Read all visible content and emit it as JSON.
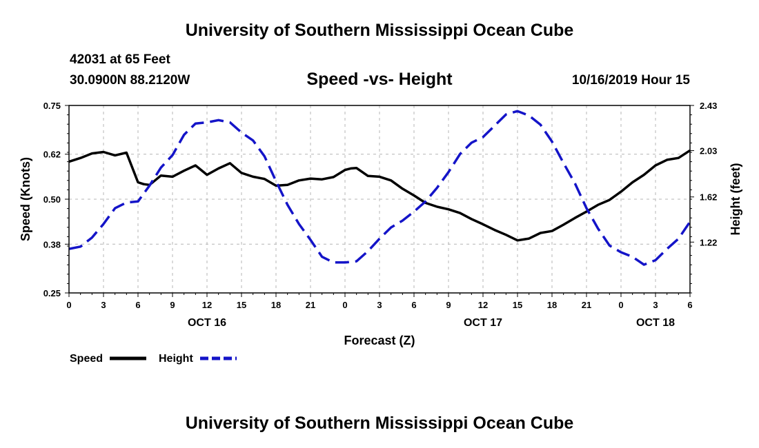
{
  "header": {
    "title": "University of Southern Mississippi Ocean Cube",
    "station": "42031 at 65 Feet",
    "coords": "30.0900N 88.2120W",
    "chart_title": "Speed -vs- Height",
    "timestamp": "10/16/2019 Hour 15"
  },
  "footer": {
    "title": "University of Southern Mississippi Ocean Cube"
  },
  "colors": {
    "speed": "#000000",
    "height": "#1414c8"
  },
  "chart_data": {
    "type": "line",
    "title": "Speed -vs- Height",
    "xlabel": "Forecast (Z)",
    "ylabel": "Speed (Knots)",
    "y2label": "Height (feet)",
    "x_unit": "hours from OCT 16 00Z",
    "xlim": [
      0,
      54
    ],
    "ylim": [
      0.25,
      0.75
    ],
    "y2lim": [
      0.77,
      2.43
    ],
    "x_ticks": [
      0,
      3,
      6,
      9,
      12,
      15,
      18,
      21,
      24,
      27,
      30,
      33,
      36,
      39,
      42,
      45,
      48,
      51,
      54
    ],
    "x_tick_labels": [
      "0",
      "3",
      "6",
      "9",
      "12",
      "15",
      "18",
      "21",
      "0",
      "3",
      "6",
      "9",
      "12",
      "15",
      "18",
      "21",
      "0",
      "3",
      "6"
    ],
    "y_ticks": [
      0.25,
      0.38,
      0.5,
      0.62,
      0.75
    ],
    "y_tick_labels": [
      "0.25",
      "0.38",
      "0.50",
      "0.62",
      "0.75"
    ],
    "y2_ticks": [
      1.22,
      1.62,
      2.03,
      2.43
    ],
    "y2_tick_labels": [
      "1.22",
      "1.62",
      "2.03",
      "2.43"
    ],
    "date_labels": [
      {
        "x": 12,
        "label": "OCT 16"
      },
      {
        "x": 36,
        "label": "OCT 17"
      },
      {
        "x": 51,
        "label": "OCT 18"
      }
    ],
    "legend_placement": "bottom-left",
    "series": [
      {
        "name": "Speed",
        "axis": "left",
        "style": "solid",
        "x": [
          0,
          1,
          2,
          3,
          4,
          5,
          6,
          6.5,
          7,
          8,
          9,
          10,
          11,
          12,
          13,
          14,
          15,
          16,
          17,
          18,
          19,
          20,
          21,
          22,
          23,
          24,
          24.5,
          25,
          26,
          27,
          28,
          29,
          30,
          31,
          32,
          33,
          34,
          35,
          36,
          37,
          38,
          39,
          40,
          41,
          42,
          43,
          44,
          45,
          46,
          47,
          48,
          49,
          50,
          51,
          52,
          53,
          54
        ],
        "values": [
          0.6,
          0.61,
          0.622,
          0.626,
          0.617,
          0.624,
          0.545,
          0.54,
          0.538,
          0.563,
          0.56,
          0.576,
          0.59,
          0.565,
          0.582,
          0.596,
          0.57,
          0.56,
          0.554,
          0.536,
          0.538,
          0.55,
          0.555,
          0.553,
          0.559,
          0.578,
          0.582,
          0.583,
          0.562,
          0.56,
          0.55,
          0.528,
          0.51,
          0.49,
          0.48,
          0.473,
          0.463,
          0.447,
          0.433,
          0.418,
          0.405,
          0.39,
          0.395,
          0.41,
          0.415,
          0.432,
          0.45,
          0.467,
          0.485,
          0.498,
          0.52,
          0.545,
          0.565,
          0.59,
          0.605,
          0.61,
          0.63
        ]
      },
      {
        "name": "Height",
        "axis": "right",
        "style": "dashed",
        "x": [
          0,
          1,
          2,
          3,
          4,
          5,
          6,
          7,
          8,
          9,
          10,
          11,
          12,
          13,
          14,
          15,
          16,
          17,
          18,
          19,
          20,
          21,
          22,
          23,
          24,
          25,
          26,
          27,
          28,
          29,
          30,
          31,
          32,
          33,
          34,
          35,
          36,
          37,
          38,
          39,
          40,
          41,
          42,
          43,
          44,
          45,
          46,
          47,
          48,
          49,
          50,
          51,
          52,
          53,
          54
        ],
        "values": [
          1.16,
          1.18,
          1.26,
          1.38,
          1.52,
          1.57,
          1.58,
          1.72,
          1.88,
          1.99,
          2.17,
          2.27,
          2.28,
          2.3,
          2.28,
          2.19,
          2.12,
          1.98,
          1.76,
          1.55,
          1.38,
          1.24,
          1.09,
          1.04,
          1.04,
          1.05,
          1.14,
          1.25,
          1.35,
          1.41,
          1.49,
          1.58,
          1.7,
          1.84,
          2.0,
          2.1,
          2.15,
          2.25,
          2.35,
          2.38,
          2.34,
          2.26,
          2.11,
          1.92,
          1.74,
          1.52,
          1.34,
          1.19,
          1.13,
          1.09,
          1.02,
          1.06,
          1.16,
          1.25,
          1.4
        ]
      }
    ]
  }
}
